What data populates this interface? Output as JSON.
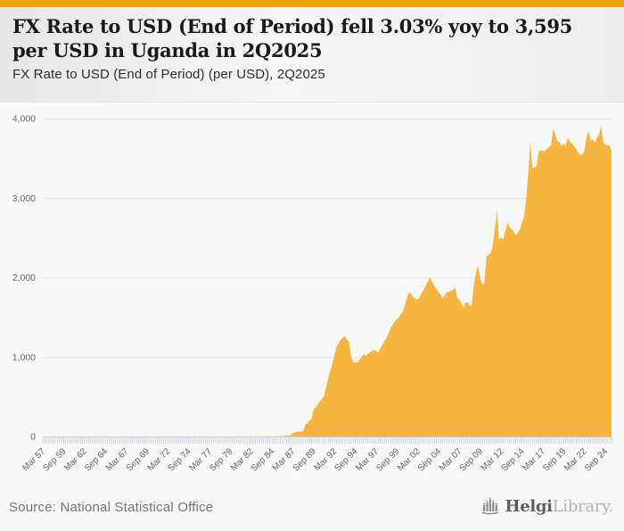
{
  "page": {
    "background": "#f8f8f8",
    "accent_bar_color": "#F1A40B"
  },
  "header": {
    "title": "FX Rate to USD (End of Period) fell 3.03% yoy to 3,595 per USD in Uganda in 2Q2025",
    "subtitle": "FX Rate to USD (End of Period) (per USD), 2Q2025"
  },
  "footer": {
    "source": "Source: National Statistical Office",
    "logo": {
      "name": "HelgiLibrary",
      "text_primary": "Helgi",
      "text_secondary": "Library."
    }
  },
  "chart_data": {
    "type": "area",
    "title": "FX Rate to USD (End of Period) (per USD), 2Q2025",
    "country": "Uganda",
    "period": "2Q2025",
    "last_value": 3595,
    "yoy_change_pct": -3.03,
    "area_color": "#F6B53E",
    "grid_color": "#e3e3e3",
    "baseline_color": "#cfcfcf",
    "tick_color": "#c3cce0",
    "axis_text_color": "#666666",
    "x_axis": {
      "start": "1957Q1",
      "end": "2025Q2",
      "frequency": "quarterly",
      "tick_every_quarters": 10,
      "tick_labels": [
        "Mar 57",
        "Sep 59",
        "Mar 62",
        "Sep 64",
        "Mar 67",
        "Sep 69",
        "Mar 72",
        "Sep 74",
        "Mar 77",
        "Sep 79",
        "Mar 82",
        "Sep 84",
        "Mar 87",
        "Sep 89",
        "Mar 92",
        "Sep 94",
        "Mar 97",
        "Sep 99",
        "Mar 02",
        "Sep 04",
        "Mar 07",
        "Sep 09",
        "Mar 12",
        "Sep 14",
        "Mar 17",
        "Sep 19",
        "Mar 22",
        "Sep 24"
      ]
    },
    "y_axis": {
      "min": 0,
      "max": 4000,
      "tick_step": 1000,
      "tick_labels": [
        "0",
        "1,000",
        "2,000",
        "3,000",
        "4,000"
      ],
      "gridlines": true
    },
    "series": [
      {
        "name": "FX Rate to USD (End of Period), per USD",
        "interpolation": "linear",
        "points": [
          [
            "1957Q1",
            0.07
          ],
          [
            "1966Q4",
            0.07
          ],
          [
            "1971Q4",
            0.07
          ],
          [
            "1980Q4",
            0.09
          ],
          [
            "1981Q2",
            0.8
          ],
          [
            "1982Q4",
            1.1
          ],
          [
            "1983Q4",
            1.5
          ],
          [
            "1984Q4",
            3.6
          ],
          [
            "1985Q4",
            6
          ],
          [
            "1986Q4",
            14
          ],
          [
            "1987Q1",
            42
          ],
          [
            "1987Q3",
            60
          ],
          [
            "1988Q2",
            64
          ],
          [
            "1988Q3",
            150
          ],
          [
            "1988Q4",
            165
          ],
          [
            "1989Q1",
            200
          ],
          [
            "1989Q2",
            215
          ],
          [
            "1989Q3",
            340
          ],
          [
            "1989Q4",
            370
          ],
          [
            "1990Q2",
            440
          ],
          [
            "1990Q4",
            510
          ],
          [
            "1991Q2",
            730
          ],
          [
            "1991Q4",
            915
          ],
          [
            "1992Q2",
            1130
          ],
          [
            "1992Q4",
            1217
          ],
          [
            "1993Q2",
            1265
          ],
          [
            "1993Q3",
            1220
          ],
          [
            "1993Q4",
            1195
          ],
          [
            "1994Q1",
            1010
          ],
          [
            "1994Q2",
            935
          ],
          [
            "1994Q4",
            930
          ],
          [
            "1995Q2",
            1000
          ],
          [
            "1995Q3",
            1035
          ],
          [
            "1995Q4",
            1015
          ],
          [
            "1996Q2",
            1060
          ],
          [
            "1996Q4",
            1090
          ],
          [
            "1997Q2",
            1060
          ],
          [
            "1997Q4",
            1155
          ],
          [
            "1998Q2",
            1240
          ],
          [
            "1998Q4",
            1365
          ],
          [
            "1999Q2",
            1450
          ],
          [
            "1999Q4",
            1505
          ],
          [
            "2000Q2",
            1580
          ],
          [
            "2000Q4",
            1765
          ],
          [
            "2001Q1",
            1815
          ],
          [
            "2001Q2",
            1790
          ],
          [
            "2001Q3",
            1745
          ],
          [
            "2002Q1",
            1720
          ],
          [
            "2002Q3",
            1810
          ],
          [
            "2002Q4",
            1850
          ],
          [
            "2003Q1",
            1905
          ],
          [
            "2003Q2",
            1960
          ],
          [
            "2003Q3",
            2000
          ],
          [
            "2003Q4",
            1940
          ],
          [
            "2004Q2",
            1850
          ],
          [
            "2004Q4",
            1780
          ],
          [
            "2005Q1",
            1740
          ],
          [
            "2005Q3",
            1820
          ],
          [
            "2005Q4",
            1815
          ],
          [
            "2006Q2",
            1850
          ],
          [
            "2006Q3",
            1870
          ],
          [
            "2006Q4",
            1740
          ],
          [
            "2007Q1",
            1720
          ],
          [
            "2007Q3",
            1620
          ],
          [
            "2007Q4",
            1685
          ],
          [
            "2008Q1",
            1690
          ],
          [
            "2008Q2",
            1640
          ],
          [
            "2008Q3",
            1655
          ],
          [
            "2008Q4",
            1935
          ],
          [
            "2009Q1",
            2070
          ],
          [
            "2009Q2",
            2140
          ],
          [
            "2009Q3",
            1990
          ],
          [
            "2009Q4",
            1900
          ],
          [
            "2010Q1",
            1940
          ],
          [
            "2010Q2",
            2265
          ],
          [
            "2010Q4",
            2310
          ],
          [
            "2011Q1",
            2400
          ],
          [
            "2011Q2",
            2590
          ],
          [
            "2011Q3",
            2855
          ],
          [
            "2011Q4",
            2480
          ],
          [
            "2012Q1",
            2500
          ],
          [
            "2012Q2",
            2480
          ],
          [
            "2012Q4",
            2690
          ],
          [
            "2013Q1",
            2640
          ],
          [
            "2013Q3",
            2580
          ],
          [
            "2013Q4",
            2525
          ],
          [
            "2014Q2",
            2600
          ],
          [
            "2014Q4",
            2765
          ],
          [
            "2015Q1",
            2970
          ],
          [
            "2015Q2",
            3300
          ],
          [
            "2015Q3",
            3707
          ],
          [
            "2015Q4",
            3370
          ],
          [
            "2016Q1",
            3385
          ],
          [
            "2016Q2",
            3395
          ],
          [
            "2016Q3",
            3580
          ],
          [
            "2016Q4",
            3600
          ],
          [
            "2017Q2",
            3590
          ],
          [
            "2017Q4",
            3640
          ],
          [
            "2018Q1",
            3660
          ],
          [
            "2018Q2",
            3877
          ],
          [
            "2018Q3",
            3800
          ],
          [
            "2018Q4",
            3715
          ],
          [
            "2019Q1",
            3700
          ],
          [
            "2019Q2",
            3655
          ],
          [
            "2019Q3",
            3680
          ],
          [
            "2019Q4",
            3660
          ],
          [
            "2020Q1",
            3755
          ],
          [
            "2020Q2",
            3715
          ],
          [
            "2020Q3",
            3690
          ],
          [
            "2020Q4",
            3650
          ],
          [
            "2021Q1",
            3620
          ],
          [
            "2021Q2",
            3565
          ],
          [
            "2021Q3",
            3550
          ],
          [
            "2021Q4",
            3545
          ],
          [
            "2022Q1",
            3595
          ],
          [
            "2022Q2",
            3760
          ],
          [
            "2022Q3",
            3845
          ],
          [
            "2022Q4",
            3715
          ],
          [
            "2023Q1",
            3745
          ],
          [
            "2023Q2",
            3690
          ],
          [
            "2023Q3",
            3760
          ],
          [
            "2023Q4",
            3800
          ],
          [
            "2024Q1",
            3900
          ],
          [
            "2024Q2",
            3707
          ],
          [
            "2024Q3",
            3670
          ],
          [
            "2024Q4",
            3660
          ],
          [
            "2025Q1",
            3660
          ],
          [
            "2025Q2",
            3595
          ]
        ]
      }
    ]
  }
}
